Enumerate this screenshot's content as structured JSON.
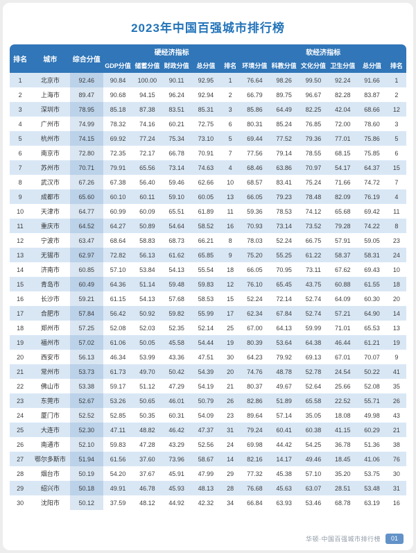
{
  "title": "2023年中国百强城市排行榜",
  "colors": {
    "title_text": "#2273b8",
    "header_bg": "#3076b8",
    "row_alt_bg": "#d9e7f5",
    "composite_col_tint": "#c3d8ec",
    "page_badge_bg": "#6292c8"
  },
  "table": {
    "header": {
      "rank": "排名",
      "city": "城市",
      "composite": "综合分值",
      "hard_group": "硬经济指标",
      "soft_group": "软经济指标",
      "hard_cols": [
        "GDP分值",
        "储蓄分值",
        "财政分值",
        "总分值",
        "排名"
      ],
      "soft_cols": [
        "环境分值",
        "科教分值",
        "文化分值",
        "卫生分值",
        "总分值",
        "排名"
      ]
    },
    "rows": [
      {
        "rank": "1",
        "city": "北京市",
        "composite": "92.46",
        "hard": [
          "90.84",
          "100.00",
          "90.11",
          "92.95",
          "1"
        ],
        "soft": [
          "76.64",
          "98.26",
          "99.50",
          "92.24",
          "91.66",
          "1"
        ]
      },
      {
        "rank": "2",
        "city": "上海市",
        "composite": "89.47",
        "hard": [
          "90.68",
          "94.15",
          "96.24",
          "92.94",
          "2"
        ],
        "soft": [
          "66.79",
          "89.75",
          "96.67",
          "82.28",
          "83.87",
          "2"
        ]
      },
      {
        "rank": "3",
        "city": "深圳市",
        "composite": "78.95",
        "hard": [
          "85.18",
          "87.38",
          "83.51",
          "85.31",
          "3"
        ],
        "soft": [
          "85.86",
          "64.49",
          "82.25",
          "42.04",
          "68.66",
          "12"
        ]
      },
      {
        "rank": "4",
        "city": "广州市",
        "composite": "74.99",
        "hard": [
          "78.32",
          "74.16",
          "60.21",
          "72.75",
          "6"
        ],
        "soft": [
          "80.31",
          "85.24",
          "76.85",
          "72.00",
          "78.60",
          "3"
        ]
      },
      {
        "rank": "5",
        "city": "杭州市",
        "composite": "74.15",
        "hard": [
          "69.92",
          "77.24",
          "75.34",
          "73.10",
          "5"
        ],
        "soft": [
          "69.44",
          "77.52",
          "79.36",
          "77.01",
          "75.86",
          "5"
        ]
      },
      {
        "rank": "6",
        "city": "南京市",
        "composite": "72.80",
        "hard": [
          "72.35",
          "72.17",
          "66.78",
          "70.91",
          "7"
        ],
        "soft": [
          "77.56",
          "79.14",
          "78.55",
          "68.15",
          "75.85",
          "6"
        ]
      },
      {
        "rank": "7",
        "city": "苏州市",
        "composite": "70.71",
        "hard": [
          "79.91",
          "65.56",
          "73.14",
          "74.63",
          "4"
        ],
        "soft": [
          "68.46",
          "63.86",
          "70.97",
          "54.17",
          "64.37",
          "15"
        ]
      },
      {
        "rank": "8",
        "city": "武汉市",
        "composite": "67.26",
        "hard": [
          "67.38",
          "56.40",
          "59.46",
          "62.66",
          "10"
        ],
        "soft": [
          "68.57",
          "83.41",
          "75.24",
          "71.66",
          "74.72",
          "7"
        ]
      },
      {
        "rank": "9",
        "city": "成都市",
        "composite": "65.60",
        "hard": [
          "60.10",
          "60.11",
          "59.10",
          "60.05",
          "13"
        ],
        "soft": [
          "66.05",
          "79.23",
          "78.48",
          "82.09",
          "76.19",
          "4"
        ]
      },
      {
        "rank": "10",
        "city": "天津市",
        "composite": "64.77",
        "hard": [
          "60.99",
          "60.09",
          "65.51",
          "61.89",
          "11"
        ],
        "soft": [
          "59.36",
          "78.53",
          "74.12",
          "65.68",
          "69.42",
          "11"
        ]
      },
      {
        "rank": "11",
        "city": "重庆市",
        "composite": "64.52",
        "hard": [
          "64.27",
          "50.89",
          "54.64",
          "58.52",
          "16"
        ],
        "soft": [
          "70.93",
          "73.14",
          "73.52",
          "79.28",
          "74.22",
          "8"
        ]
      },
      {
        "rank": "12",
        "city": "宁波市",
        "composite": "63.47",
        "hard": [
          "68.64",
          "58.83",
          "68.73",
          "66.21",
          "8"
        ],
        "soft": [
          "78.03",
          "52.24",
          "66.75",
          "57.91",
          "59.05",
          "23"
        ]
      },
      {
        "rank": "13",
        "city": "无锡市",
        "composite": "62.97",
        "hard": [
          "72.82",
          "56.13",
          "61.62",
          "65.85",
          "9"
        ],
        "soft": [
          "75.20",
          "55.25",
          "61.22",
          "58.37",
          "58.31",
          "24"
        ]
      },
      {
        "rank": "14",
        "city": "济南市",
        "composite": "60.85",
        "hard": [
          "57.10",
          "53.84",
          "54.13",
          "55.54",
          "18"
        ],
        "soft": [
          "66.05",
          "70.95",
          "73.11",
          "67.62",
          "69.43",
          "10"
        ]
      },
      {
        "rank": "15",
        "city": "青岛市",
        "composite": "60.49",
        "hard": [
          "64.36",
          "51.14",
          "59.48",
          "59.83",
          "12"
        ],
        "soft": [
          "76.10",
          "65.45",
          "43.75",
          "60.88",
          "61.55",
          "18"
        ]
      },
      {
        "rank": "16",
        "city": "长沙市",
        "composite": "59.21",
        "hard": [
          "61.15",
          "54.13",
          "57.68",
          "58.53",
          "15"
        ],
        "soft": [
          "52.24",
          "72.14",
          "52.74",
          "64.09",
          "60.30",
          "20"
        ]
      },
      {
        "rank": "17",
        "city": "合肥市",
        "composite": "57.84",
        "hard": [
          "56.42",
          "50.92",
          "59.82",
          "55.99",
          "17"
        ],
        "soft": [
          "62.34",
          "67.84",
          "52.74",
          "57.21",
          "64.90",
          "14"
        ]
      },
      {
        "rank": "18",
        "city": "郑州市",
        "composite": "57.25",
        "hard": [
          "52.08",
          "52.03",
          "52.35",
          "52.14",
          "25"
        ],
        "soft": [
          "67.00",
          "64.13",
          "59.99",
          "71.01",
          "65.53",
          "13"
        ]
      },
      {
        "rank": "19",
        "city": "福州市",
        "composite": "57.02",
        "hard": [
          "61.06",
          "50.05",
          "45.58",
          "54.44",
          "19"
        ],
        "soft": [
          "80.39",
          "53.64",
          "64.38",
          "46.44",
          "61.21",
          "19"
        ]
      },
      {
        "rank": "20",
        "city": "西安市",
        "composite": "56.13",
        "hard": [
          "46.34",
          "53.99",
          "43.36",
          "47.51",
          "30"
        ],
        "soft": [
          "64.23",
          "79.92",
          "69.13",
          "67.01",
          "70.07",
          "9"
        ]
      },
      {
        "rank": "21",
        "city": "常州市",
        "composite": "53.73",
        "hard": [
          "61.73",
          "49.70",
          "50.42",
          "54.39",
          "20"
        ],
        "soft": [
          "74.76",
          "48.78",
          "52.78",
          "24.54",
          "50.22",
          "41"
        ]
      },
      {
        "rank": "22",
        "city": "佛山市",
        "composite": "53.38",
        "hard": [
          "59.17",
          "51.12",
          "47.29",
          "54.19",
          "21"
        ],
        "soft": [
          "80.37",
          "49.67",
          "52.64",
          "25.66",
          "52.08",
          "35"
        ]
      },
      {
        "rank": "23",
        "city": "东莞市",
        "composite": "52.67",
        "hard": [
          "53.26",
          "50.65",
          "46.01",
          "50.79",
          "26"
        ],
        "soft": [
          "82.86",
          "51.89",
          "65.58",
          "22.52",
          "55.71",
          "26"
        ]
      },
      {
        "rank": "24",
        "city": "厦门市",
        "composite": "52.52",
        "hard": [
          "52.85",
          "50.35",
          "60.31",
          "54.09",
          "23"
        ],
        "soft": [
          "89.64",
          "57.14",
          "35.05",
          "18.08",
          "49.98",
          "43"
        ]
      },
      {
        "rank": "25",
        "city": "大连市",
        "composite": "52.30",
        "hard": [
          "47.11",
          "48.82",
          "46.42",
          "47.37",
          "31"
        ],
        "soft": [
          "79.24",
          "60.41",
          "60.38",
          "41.15",
          "60.29",
          "21"
        ]
      },
      {
        "rank": "26",
        "city": "南通市",
        "composite": "52.10",
        "hard": [
          "59.83",
          "47.28",
          "43.29",
          "52.56",
          "24"
        ],
        "soft": [
          "69.98",
          "44.42",
          "54.25",
          "36.78",
          "51.36",
          "38"
        ]
      },
      {
        "rank": "27",
        "city": "鄂尔多斯市",
        "composite": "51.94",
        "hard": [
          "61.56",
          "37.60",
          "73.96",
          "58.67",
          "14"
        ],
        "soft": [
          "82.16",
          "14.17",
          "49.46",
          "18.45",
          "41.06",
          "76"
        ]
      },
      {
        "rank": "28",
        "city": "烟台市",
        "composite": "50.19",
        "hard": [
          "54.20",
          "37.67",
          "45.91",
          "47.99",
          "29"
        ],
        "soft": [
          "77.32",
          "45.38",
          "57.10",
          "35.20",
          "53.75",
          "30"
        ]
      },
      {
        "rank": "29",
        "city": "绍兴市",
        "composite": "50.18",
        "hard": [
          "49.91",
          "46.78",
          "45.93",
          "48.13",
          "28"
        ],
        "soft": [
          "76.68",
          "45.63",
          "63.07",
          "28.51",
          "53.48",
          "31"
        ]
      },
      {
        "rank": "30",
        "city": "沈阳市",
        "composite": "50.12",
        "hard": [
          "37.59",
          "48.12",
          "44.92",
          "42.32",
          "34"
        ],
        "soft": [
          "66.84",
          "63.93",
          "53.46",
          "68.78",
          "63.19",
          "16"
        ]
      }
    ]
  },
  "footer": {
    "brand": "华顿·中国百强城市排行榜",
    "page": "01"
  }
}
